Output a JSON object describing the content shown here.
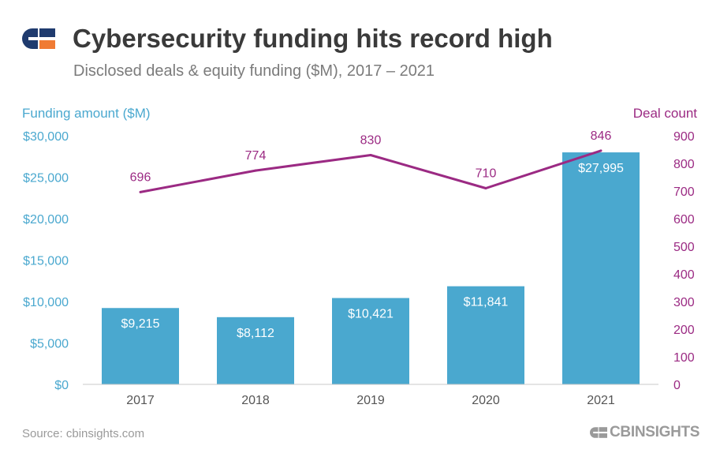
{
  "header": {
    "title": "Cybersecurity funding hits record high",
    "subtitle": "Disclosed deals & equity funding ($M), 2017 – 2021"
  },
  "footer": {
    "source": "Source: cbinsights.com",
    "brand_text": "CBINSIGHTS"
  },
  "colors": {
    "bar": "#4aa8cf",
    "line": "#9b2a83",
    "left_axis": "#4aa8cf",
    "right_axis": "#9b2a83",
    "logo_navy": "#1f3b6e",
    "logo_orange": "#f07b34"
  },
  "chart_data": {
    "type": "bar",
    "categories": [
      "2017",
      "2018",
      "2019",
      "2020",
      "2021"
    ],
    "ylabel_left": "Funding amount ($M)",
    "ylabel_right": "Deal count",
    "ylim_left": [
      0,
      30000
    ],
    "ylim_right": [
      0,
      900
    ],
    "yticks_left": [
      "$0",
      "$5,000",
      "$10,000",
      "$15,000",
      "$20,000",
      "$25,000",
      "$30,000"
    ],
    "yticks_right": [
      "0",
      "100",
      "200",
      "300",
      "400",
      "500",
      "600",
      "700",
      "800",
      "900"
    ],
    "series": [
      {
        "name": "Funding amount ($M)",
        "type": "bar",
        "axis": "left",
        "values": [
          9215,
          8112,
          10421,
          11841,
          27995
        ],
        "labels": [
          "$9,215",
          "$8,112",
          "$10,421",
          "$11,841",
          "$27,995"
        ]
      },
      {
        "name": "Deal count",
        "type": "line",
        "axis": "right",
        "values": [
          696,
          774,
          830,
          710,
          846
        ],
        "labels": [
          "696",
          "774",
          "830",
          "710",
          "846"
        ]
      }
    ],
    "grid": false,
    "legend": "none"
  }
}
